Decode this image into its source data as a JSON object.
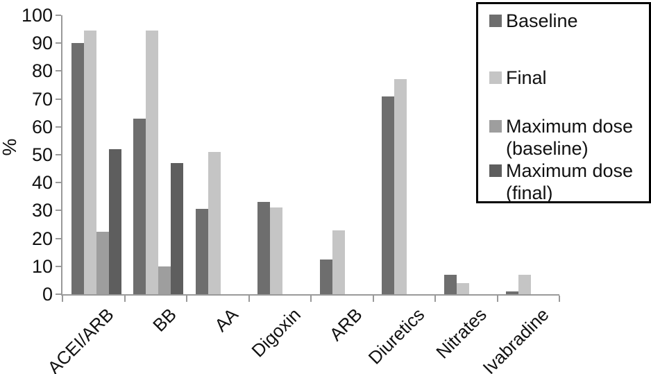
{
  "figure": {
    "background": "#ffffff",
    "axis_color": "#999999",
    "text_color": "#111111"
  },
  "chart_data": {
    "type": "bar",
    "title": "",
    "xlabel": "",
    "ylabel": "%",
    "ylim": [
      0,
      100
    ],
    "yticks": [
      0,
      10,
      20,
      30,
      40,
      50,
      60,
      70,
      80,
      90,
      100
    ],
    "grid": false,
    "legend_position": "top-right",
    "categories": [
      "ACEI/ARB",
      "BB",
      "AA",
      "Digoxin",
      "ARB",
      "Diuretics",
      "Nitrates",
      "Ivabradine"
    ],
    "series": [
      {
        "name": "Baseline",
        "color": "#6e6e6e",
        "values": [
          90,
          63,
          30.5,
          33,
          12.5,
          71,
          7,
          1
        ]
      },
      {
        "name": "Final",
        "color": "#c5c5c5",
        "values": [
          94.5,
          94.5,
          51,
          31,
          23,
          77,
          4,
          7
        ]
      },
      {
        "name": "Maximum dose (baseline)",
        "color": "#9e9e9e",
        "values": [
          22.5,
          10,
          null,
          null,
          null,
          null,
          null,
          null
        ]
      },
      {
        "name": "Maximum dose (final)",
        "color": "#5e5e5e",
        "values": [
          52,
          47,
          null,
          null,
          null,
          null,
          null,
          null
        ]
      }
    ]
  }
}
